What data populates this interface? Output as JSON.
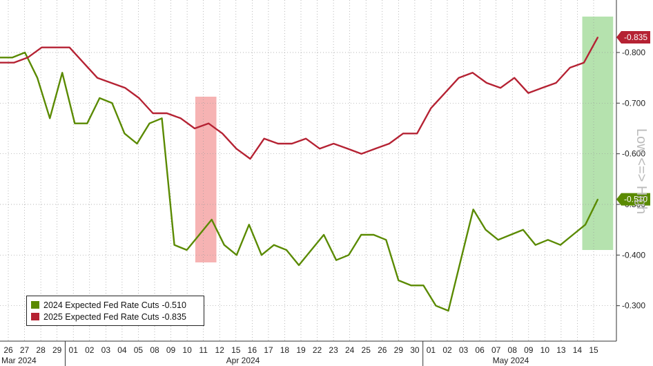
{
  "chart_data": {
    "type": "line",
    "ylim": [
      0.23,
      0.89
    ],
    "yticks": [
      "-0.300",
      "-0.400",
      "-0.500",
      "-0.600",
      "-0.700",
      "-0.800"
    ],
    "ytick_values": [
      0.3,
      0.4,
      0.5,
      0.6,
      0.7,
      0.8
    ],
    "y_side_label": "Low <=> High",
    "x_day_labels": [
      "26",
      "27",
      "28",
      "29",
      "01",
      "02",
      "03",
      "04",
      "05",
      "08",
      "09",
      "10",
      "11",
      "12",
      "15",
      "16",
      "17",
      "18",
      "19",
      "22",
      "23",
      "24",
      "25",
      "26",
      "29",
      "30",
      "01",
      "02",
      "03",
      "06",
      "07",
      "08",
      "09",
      "10",
      "13",
      "14",
      "15"
    ],
    "x_month_labels": [
      "Mar 2024",
      "Apr 2024",
      "May 2024"
    ],
    "series": [
      {
        "name": "2024 Expected Fed Rate Cuts",
        "last_value": "-0.510",
        "color": "#5a8a00",
        "values": [
          0.79,
          0.79,
          0.8,
          0.75,
          0.67,
          0.76,
          0.66,
          0.66,
          0.71,
          0.7,
          0.64,
          0.62,
          0.66,
          0.67,
          0.42,
          0.41,
          0.44,
          0.47,
          0.42,
          0.4,
          0.46,
          0.4,
          0.42,
          0.41,
          0.38,
          0.41,
          0.44,
          0.39,
          0.4,
          0.44,
          0.44,
          0.43,
          0.35,
          0.34,
          0.34,
          0.3,
          0.29,
          0.39,
          0.49,
          0.45,
          0.43,
          0.44,
          0.45,
          0.42,
          0.43,
          0.42,
          0.44,
          0.46,
          0.51
        ]
      },
      {
        "name": "2025 Expected Fed Rate Cuts",
        "last_value": "-0.835",
        "color": "#b52233",
        "values": [
          0.78,
          0.78,
          0.79,
          0.81,
          0.81,
          0.81,
          0.78,
          0.75,
          0.74,
          0.73,
          0.71,
          0.68,
          0.68,
          0.67,
          0.65,
          0.66,
          0.64,
          0.61,
          0.59,
          0.63,
          0.62,
          0.62,
          0.63,
          0.61,
          0.62,
          0.61,
          0.6,
          0.61,
          0.62,
          0.64,
          0.64,
          0.69,
          0.72,
          0.75,
          0.76,
          0.74,
          0.73,
          0.75,
          0.72,
          0.73,
          0.74,
          0.77,
          0.78,
          0.83
        ]
      }
    ],
    "highlights": [
      {
        "label": "red-band",
        "color": "#f4a6a6"
      },
      {
        "label": "green-band",
        "color": "#a8dda0"
      }
    ]
  }
}
